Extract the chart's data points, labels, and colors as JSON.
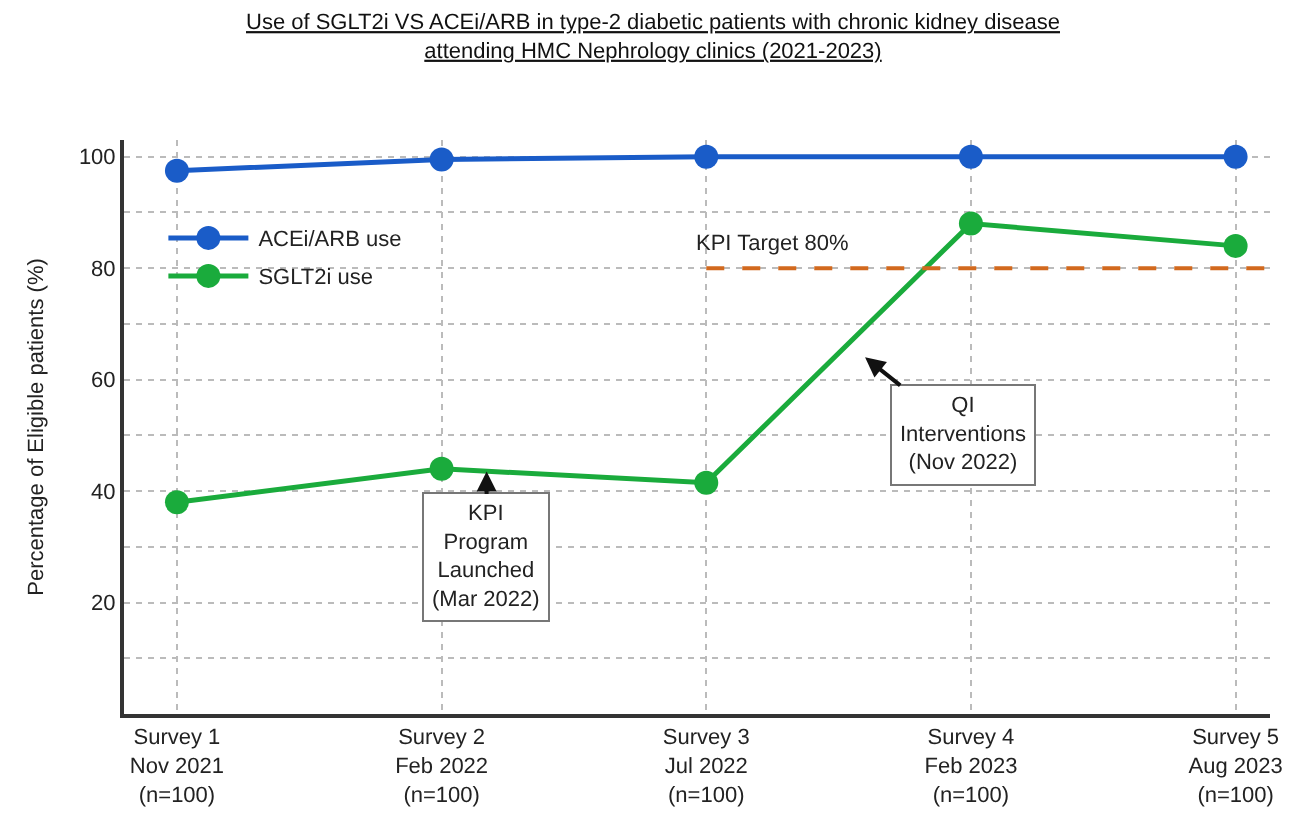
{
  "chart_data": {
    "type": "line",
    "title": "Use of SGLT2i VS ACEi/ARB in type-2 diabetic patients with chronic kidney disease\nattending HMC Nephrology clinics (2021-2023)",
    "ylabel": "Percentage of Eligible patients (%)",
    "categories": [
      "Survey 1\nNov 2021\n(n=100)",
      "Survey 2\nFeb 2022\n(n=100)",
      "Survey 3\nJul 2022\n(n=100)",
      "Survey 4\nFeb 2023\n(n=100)",
      "Survey 5\nAug 2023\n(n=100)"
    ],
    "series": [
      {
        "name": "ACEi/ARB use",
        "color": "#1a5cc8",
        "values": [
          97.5,
          99.5,
          100,
          100,
          100
        ]
      },
      {
        "name": "SGLT2i use",
        "color": "#1aab3c",
        "values": [
          38,
          44,
          41.5,
          88,
          84
        ]
      }
    ],
    "ylim": [
      0,
      103
    ],
    "yticks": [
      {
        "value": 10,
        "label": null
      },
      20,
      {
        "value": 30,
        "label": null
      },
      40,
      {
        "value": 50,
        "label": null
      },
      60,
      {
        "value": 70,
        "label": null
      },
      80,
      {
        "value": 90,
        "label": null
      },
      100
    ],
    "ref_lines": [
      {
        "axis": "y",
        "value": 80,
        "label": "KPI Target 80%",
        "color": "#d2691e",
        "line_style": "dashed"
      }
    ],
    "annotations": [
      "KPI\nProgram\nLaunched\n(Mar 2022)",
      "QI\nInterventions\n(Nov 2022)"
    ],
    "grid": true,
    "legend": "top left",
    "marker": "circle",
    "line_style": "solid"
  }
}
